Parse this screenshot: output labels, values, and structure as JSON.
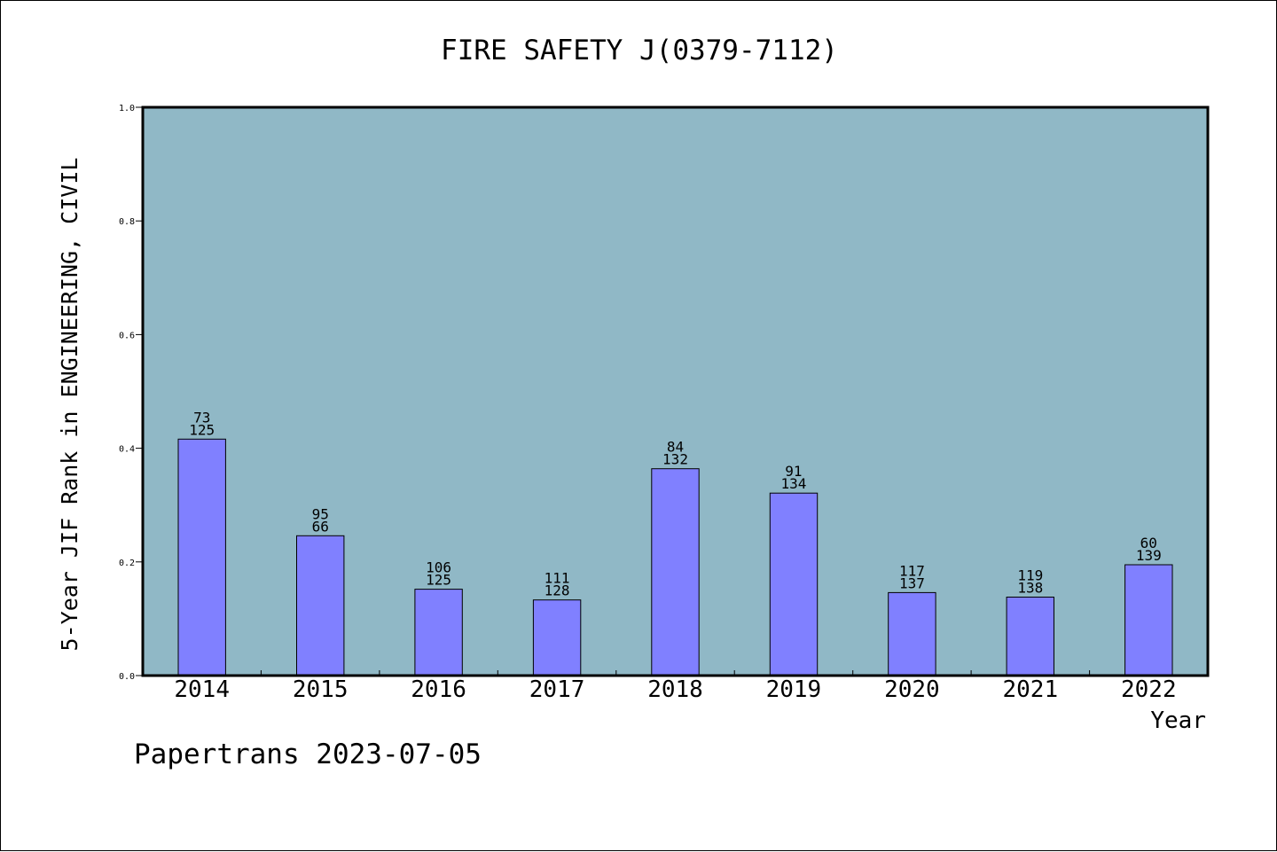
{
  "chart_data": {
    "type": "bar",
    "title": "FIRE SAFETY J(0379-7112)",
    "xlabel": "Year",
    "ylabel": "5-Year JIF Rank in ENGINEERING, CIVIL",
    "categories": [
      "2014",
      "2015",
      "2016",
      "2017",
      "2018",
      "2019",
      "2020",
      "2021",
      "2022"
    ],
    "values": [
      0.416,
      0.246,
      0.152,
      0.133,
      0.364,
      0.321,
      0.146,
      0.138,
      0.195
    ],
    "bar_labels_top": [
      "73",
      "95",
      "106",
      "111",
      "84",
      "91",
      "117",
      "119",
      "60"
    ],
    "bar_labels_bottom": [
      "125",
      "66",
      "125",
      "128",
      "132",
      "134",
      "137",
      "138",
      "139"
    ],
    "ylim": [
      0,
      1.0
    ],
    "yticks": [
      "0.0",
      "0.2",
      "0.4",
      "0.6",
      "0.8",
      "1.0"
    ],
    "grid": false,
    "colors": {
      "bar_fill": "#8080ff",
      "plot_background": "#90b8c6"
    }
  },
  "footer": {
    "text": "Papertrans 2023-07-05"
  }
}
